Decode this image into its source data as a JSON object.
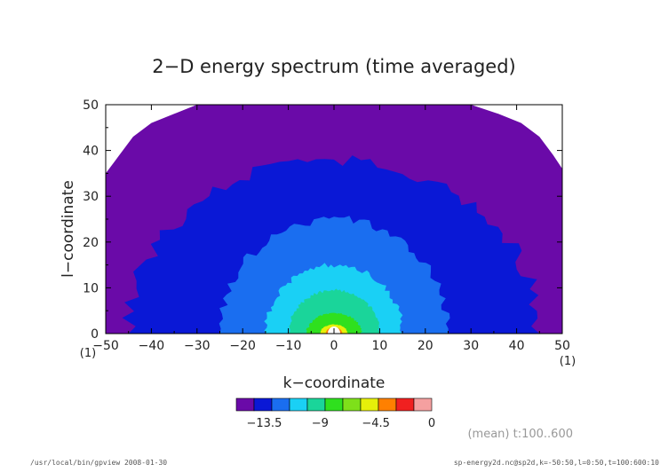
{
  "chart_data": {
    "type": "contour",
    "title": "2−D energy spectrum (time averaged)",
    "xlabel": "k−coordinate",
    "ylabel": "l−coordinate",
    "xlim": [
      -50,
      50
    ],
    "ylim": [
      0,
      50
    ],
    "x_ticks": [
      "−50",
      "−40",
      "−30",
      "−20",
      "−10",
      "0",
      "10",
      "20",
      "30",
      "40",
      "50"
    ],
    "x_tick_values": [
      -50,
      -40,
      -30,
      -20,
      -10,
      0,
      10,
      20,
      30,
      40,
      50
    ],
    "y_ticks": [
      "0",
      "10",
      "20",
      "30",
      "40",
      "50"
    ],
    "y_tick_values": [
      0,
      10,
      20,
      30,
      40,
      50
    ],
    "x_unit": "(1)",
    "y_unit": "(1)",
    "contour_bands": [
      {
        "min_level": -15.75,
        "color": "#6a0aa8",
        "radius_l": 50,
        "radius_k": 50
      },
      {
        "min_level": -13.5,
        "color": "#0a18d6",
        "radius_l": 38,
        "radius_k": 45
      },
      {
        "min_level": -11.25,
        "color": "#1a6ef0",
        "radius_l": 25,
        "radius_k": 25
      },
      {
        "min_level": -10.125,
        "color": "#1ad0f5",
        "radius_l": 15,
        "radius_k": 15
      },
      {
        "min_level": -9,
        "color": "#1ad59a",
        "radius_l": 9.5,
        "radius_k": 10
      },
      {
        "min_level": -7.875,
        "color": "#2fe01e",
        "radius_l": 4.5,
        "radius_k": 6
      },
      {
        "min_level": -6.75,
        "color": "#e6f00a",
        "radius_l": 2.0,
        "radius_k": 3
      },
      {
        "min_level": -4.5,
        "color": "#ff8000",
        "radius_l": 1.4,
        "radius_k": 1.8
      }
    ],
    "colorbar": {
      "colors": [
        "#6a0aa8",
        "#0a18d6",
        "#1a6ef0",
        "#1ad0f5",
        "#1ad59a",
        "#2fe01e",
        "#7ee01a",
        "#e6f00a",
        "#ff8000",
        "#f02020",
        "#f5a0a0"
      ],
      "tick_labels": [
        "−13.5",
        "−9",
        "−4.5",
        "0"
      ],
      "tick_values": [
        -13.5,
        -9,
        -4.5,
        0
      ],
      "range": [
        -15.75,
        0
      ]
    },
    "annotation": "(mean) t:100..600",
    "grid": false,
    "legend": "none"
  },
  "footer": {
    "left": "/usr/local/bin/gpview   2008-01-30",
    "right": "sp-energy2d.nc@sp2d,k=-50:50,l=0:50,t=100:600:10"
  }
}
